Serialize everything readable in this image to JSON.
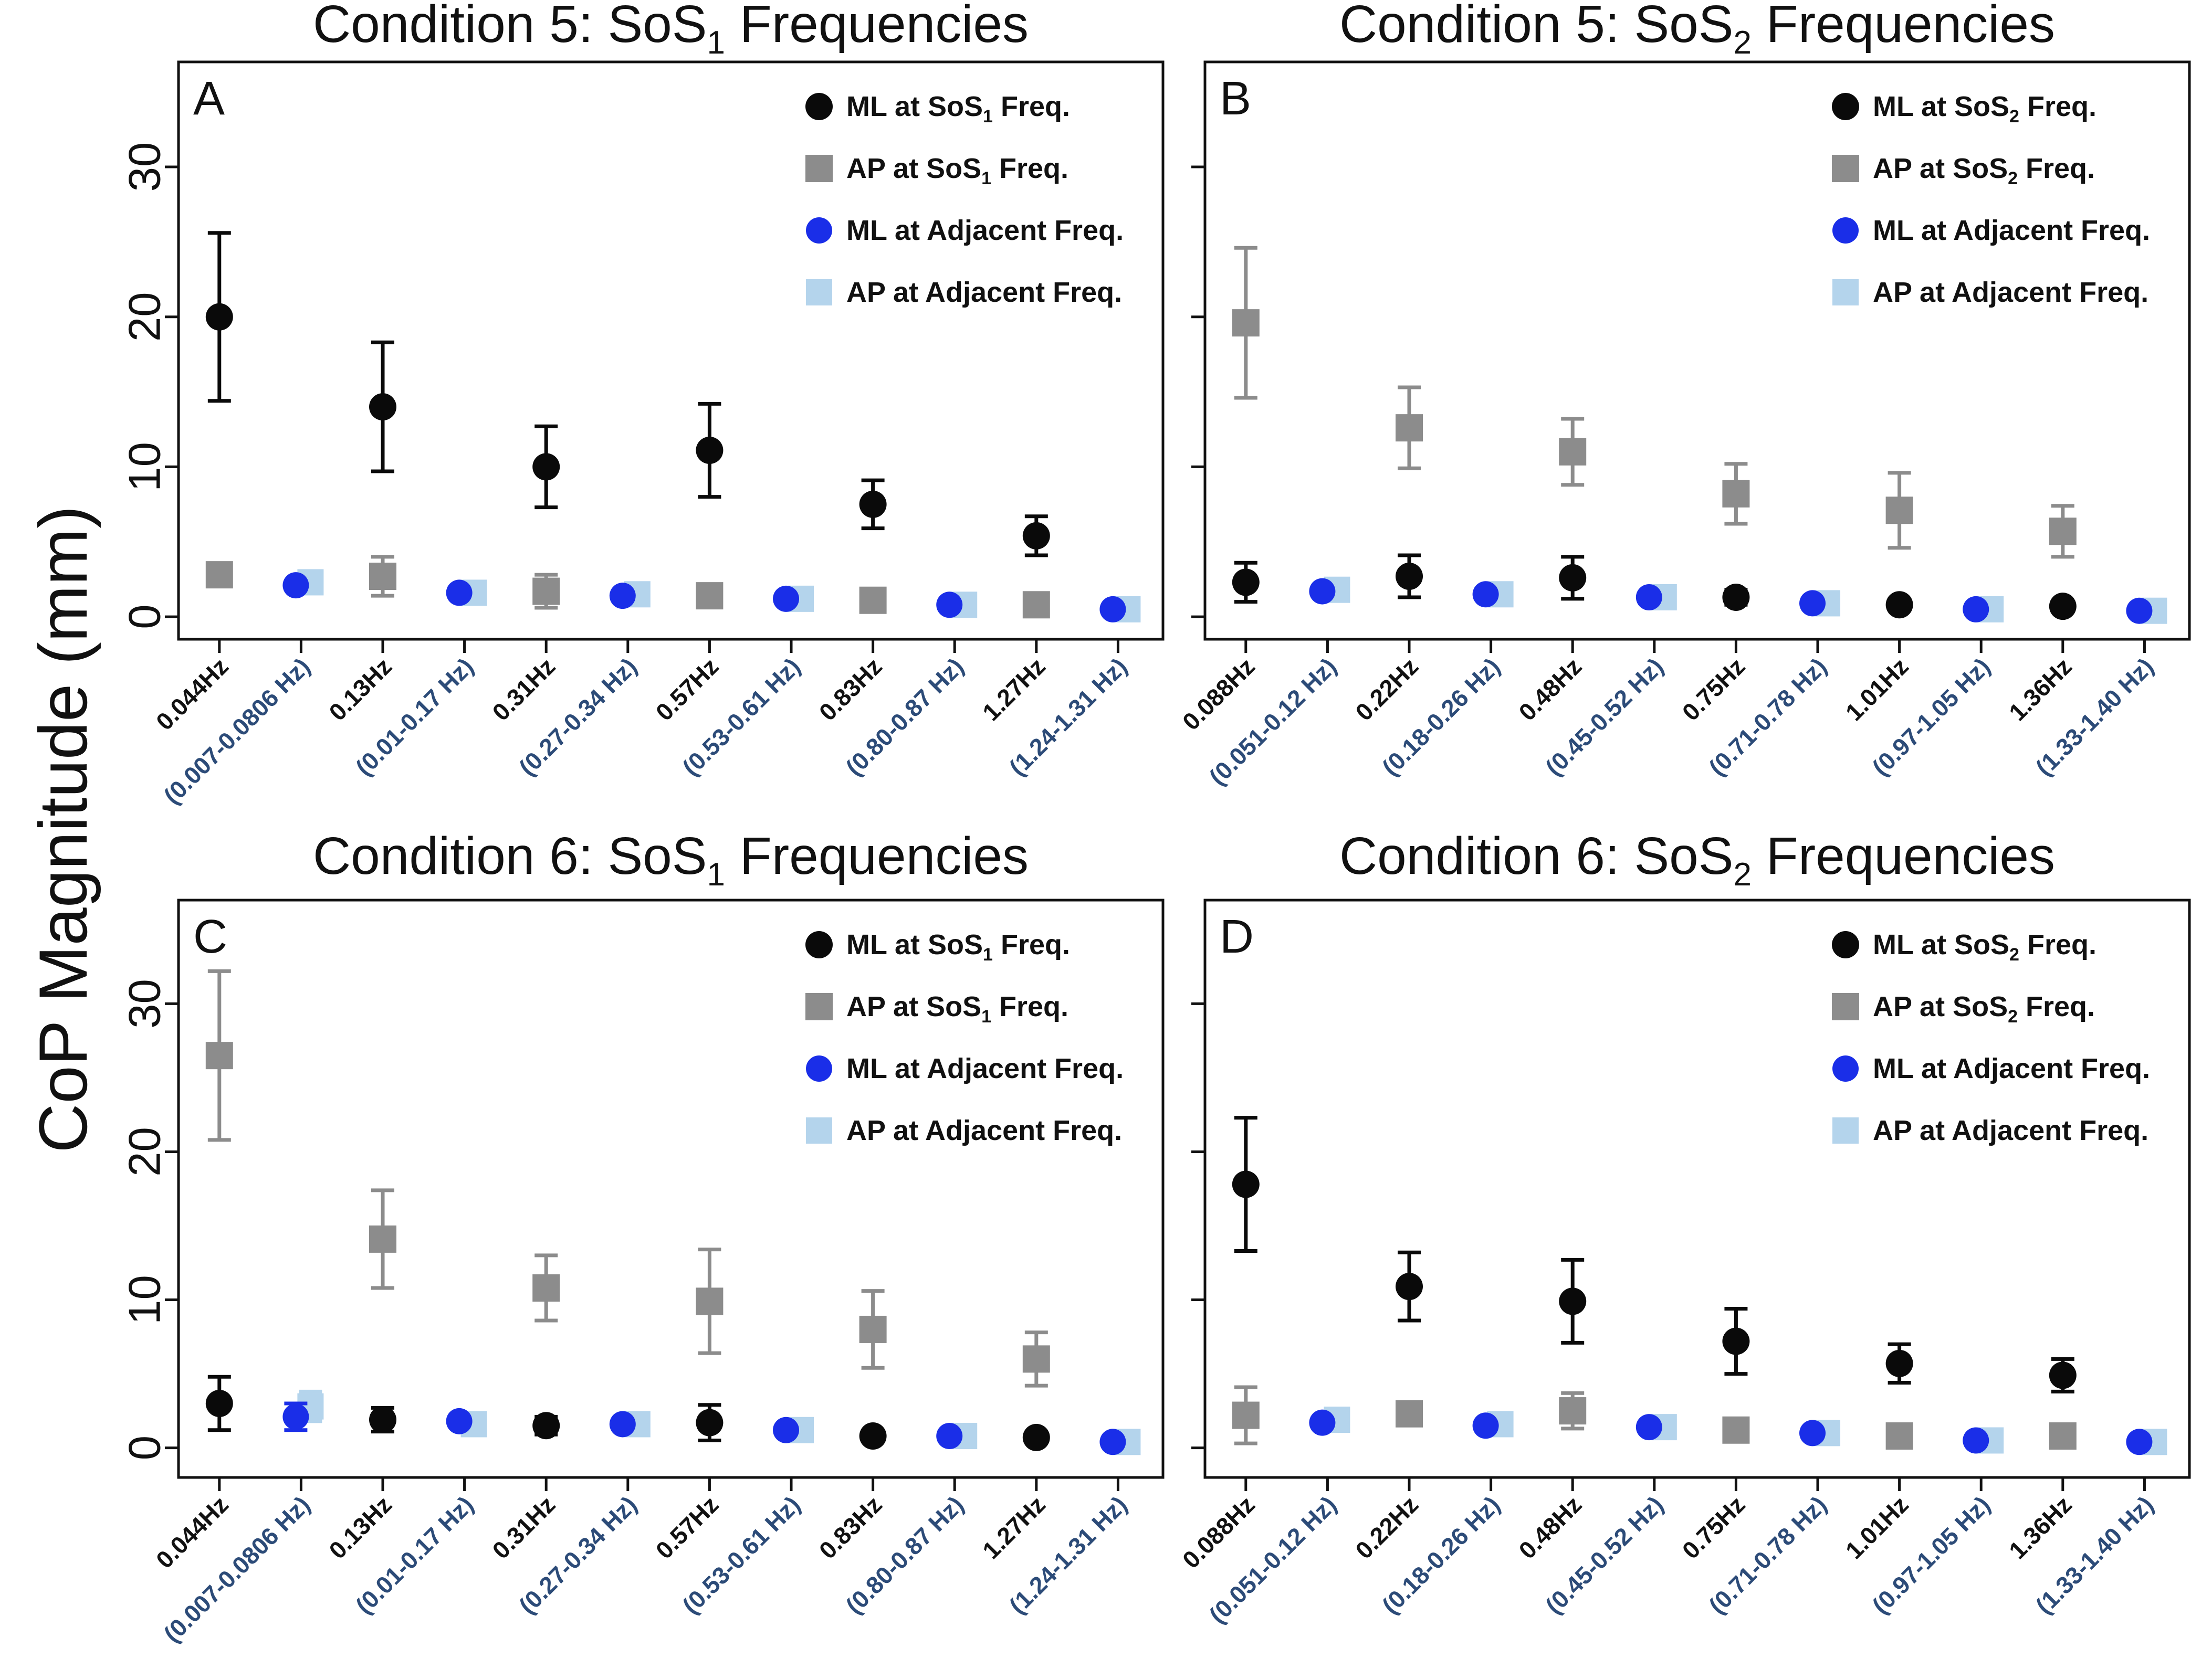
{
  "figure": {
    "y_axis_title": "CoP Magnitude (mm)"
  },
  "colors": {
    "ml_sos": "#0a0a0a",
    "ap_sos": "#8c8c8c",
    "ml_adjacent": "#1a2ee8",
    "ap_adjacent": "#b4d4ec",
    "adjacent_tick_label": "#2c4b78",
    "sos_tick_label": "#111111"
  },
  "chart_data": [
    {
      "panel": "A",
      "type": "scatter",
      "title_main": "Condition 5: SoS",
      "title_sub": "1",
      "title_tail": " Frequencies",
      "ylim": [
        -1.5,
        37
      ],
      "yticks": [
        0,
        10,
        20,
        30
      ],
      "ytick_labels": [
        "0",
        "10",
        "20",
        "30"
      ],
      "categories": [
        "0.044Hz",
        "(0.007-0.0806 Hz)",
        "0.13Hz",
        "(0.01-0.17 Hz)",
        "0.31Hz",
        "(0.27-0.34 Hz)",
        "0.57Hz",
        "(0.53-0.61 Hz)",
        "0.83Hz",
        "(0.80-0.87 Hz)",
        "1.27Hz",
        "(1.24-1.31 Hz)"
      ],
      "legend": [
        {
          "key": "ml_sos",
          "prefix": "ML at SoS",
          "sub": "1",
          "suffix": " Freq."
        },
        {
          "key": "ap_sos",
          "prefix": "AP at SoS",
          "sub": "1",
          "suffix": " Freq."
        },
        {
          "key": "ml_adj",
          "prefix": "ML at Adjacent Freq.",
          "sub": "",
          "suffix": ""
        },
        {
          "key": "ap_adj",
          "prefix": "AP at Adjacent Freq.",
          "sub": "",
          "suffix": ""
        }
      ],
      "series": [
        {
          "name": "ML at SoS1 Freq.",
          "key": "ml_sos",
          "positions": [
            0,
            2,
            4,
            6,
            8,
            10
          ],
          "values": [
            20.0,
            14.0,
            10.0,
            11.1,
            7.5,
            5.4
          ],
          "errors": [
            5.6,
            4.3,
            2.7,
            3.1,
            1.6,
            1.3
          ]
        },
        {
          "name": "AP at SoS1 Freq.",
          "key": "ap_sos",
          "positions": [
            0,
            2,
            4,
            6,
            8,
            10
          ],
          "values": [
            2.8,
            2.7,
            1.7,
            1.4,
            1.1,
            0.8
          ],
          "errors": [
            0.5,
            1.3,
            1.1,
            0.6,
            0.4,
            0.2
          ]
        },
        {
          "name": "ML at Adjacent Freq.",
          "key": "ml_adj",
          "positions": [
            1,
            3,
            5,
            7,
            9,
            11
          ],
          "values": [
            2.1,
            1.6,
            1.4,
            1.2,
            0.8,
            0.5
          ],
          "errors": [
            0.2,
            0.2,
            0.2,
            0.2,
            0.1,
            0.1
          ]
        },
        {
          "name": "AP at Adjacent Freq.",
          "key": "ap_adj",
          "positions": [
            1,
            3,
            5,
            7,
            9,
            11
          ],
          "values": [
            2.3,
            1.6,
            1.5,
            1.2,
            0.8,
            0.5
          ],
          "errors": [
            0,
            0,
            0,
            0,
            0,
            0
          ]
        }
      ]
    },
    {
      "panel": "B",
      "type": "scatter",
      "title_main": "Condition 5: SoS",
      "title_sub": "2",
      "title_tail": " Frequencies",
      "ylim": [
        -1.5,
        37
      ],
      "yticks": [
        0,
        10,
        20,
        30
      ],
      "ytick_labels": [],
      "categories": [
        "0.088Hz",
        "(0.051-0.12 Hz)",
        "0.22Hz",
        "(0.18-0.26 Hz)",
        "0.48Hz",
        "(0.45-0.52 Hz)",
        "0.75Hz",
        "(0.71-0.78 Hz)",
        "1.01Hz",
        "(0.97-1.05 Hz)",
        "1.36Hz",
        "(1.33-1.40 Hz)"
      ],
      "legend": [
        {
          "key": "ml_sos",
          "prefix": "ML at SoS",
          "sub": "2",
          "suffix": " Freq."
        },
        {
          "key": "ap_sos",
          "prefix": "AP at SoS",
          "sub": "2",
          "suffix": " Freq."
        },
        {
          "key": "ml_adj",
          "prefix": "ML at Adjacent Freq.",
          "sub": "",
          "suffix": ""
        },
        {
          "key": "ap_adj",
          "prefix": "AP at Adjacent Freq.",
          "sub": "",
          "suffix": ""
        }
      ],
      "series": [
        {
          "name": "ML at SoS2 Freq.",
          "key": "ml_sos",
          "positions": [
            0,
            2,
            4,
            6,
            8,
            10
          ],
          "values": [
            2.3,
            2.7,
            2.6,
            1.3,
            0.8,
            0.7
          ],
          "errors": [
            1.3,
            1.4,
            1.4,
            0.5,
            0.3,
            0.2
          ]
        },
        {
          "name": "AP at SoS2 Freq.",
          "key": "ap_sos",
          "positions": [
            0,
            2,
            4,
            6,
            8,
            10
          ],
          "values": [
            19.6,
            12.6,
            11.0,
            8.2,
            7.1,
            5.7
          ],
          "errors": [
            5.0,
            2.7,
            2.2,
            2.0,
            2.5,
            1.7
          ]
        },
        {
          "name": "ML at Adjacent Freq.",
          "key": "ml_adj",
          "positions": [
            1,
            3,
            5,
            7,
            9,
            11
          ],
          "values": [
            1.7,
            1.5,
            1.3,
            0.9,
            0.5,
            0.4
          ],
          "errors": [
            0.2,
            0.2,
            0.1,
            0.1,
            0.1,
            0.1
          ]
        },
        {
          "name": "AP at Adjacent Freq.",
          "key": "ap_adj",
          "positions": [
            1,
            3,
            5,
            7,
            9,
            11
          ],
          "values": [
            1.8,
            1.5,
            1.3,
            0.9,
            0.5,
            0.4
          ],
          "errors": [
            0,
            0,
            0,
            0,
            0,
            0
          ]
        }
      ]
    },
    {
      "panel": "C",
      "type": "scatter",
      "title_main": "Condition 6: SoS",
      "title_sub": "1",
      "title_tail": " Frequencies",
      "ylim": [
        -2,
        37
      ],
      "yticks": [
        0,
        10,
        20,
        30
      ],
      "ytick_labels": [
        "0",
        "10",
        "20",
        "30"
      ],
      "categories": [
        "0.044Hz",
        "(0.007-0.0806 Hz)",
        "0.13Hz",
        "(0.01-0.17 Hz)",
        "0.31Hz",
        "(0.27-0.34 Hz)",
        "0.57Hz",
        "(0.53-0.61 Hz)",
        "0.83Hz",
        "(0.80-0.87 Hz)",
        "1.27Hz",
        "(1.24-1.31 Hz)"
      ],
      "legend": [
        {
          "key": "ml_sos",
          "prefix": "ML at SoS",
          "sub": "1",
          "suffix": " Freq."
        },
        {
          "key": "ap_sos",
          "prefix": "AP at SoS",
          "sub": "1",
          "suffix": " Freq."
        },
        {
          "key": "ml_adj",
          "prefix": "ML at Adjacent Freq.",
          "sub": "",
          "suffix": ""
        },
        {
          "key": "ap_adj",
          "prefix": "AP at Adjacent Freq.",
          "sub": "",
          "suffix": ""
        }
      ],
      "series": [
        {
          "name": "ML at SoS1 Freq.",
          "key": "ml_sos",
          "positions": [
            0,
            2,
            4,
            6,
            8,
            10
          ],
          "values": [
            3.0,
            1.9,
            1.5,
            1.7,
            0.8,
            0.7
          ],
          "errors": [
            1.8,
            0.8,
            0.6,
            1.2,
            0.2,
            0.2
          ]
        },
        {
          "name": "AP at SoS1 Freq.",
          "key": "ap_sos",
          "positions": [
            0,
            2,
            4,
            6,
            8,
            10
          ],
          "values": [
            26.5,
            14.1,
            10.8,
            9.9,
            8.0,
            6.0
          ],
          "errors": [
            5.7,
            3.3,
            2.2,
            3.5,
            2.6,
            1.8
          ]
        },
        {
          "name": "ML at Adjacent Freq.",
          "key": "ml_adj",
          "positions": [
            1,
            3,
            5,
            7,
            9,
            11
          ],
          "values": [
            2.1,
            1.8,
            1.6,
            1.2,
            0.8,
            0.4
          ],
          "errors": [
            0.9,
            0.3,
            0.2,
            0.2,
            0.1,
            0.1
          ]
        },
        {
          "name": "AP at Adjacent Freq.",
          "key": "ap_adj",
          "positions": [
            1,
            3,
            5,
            7,
            9,
            11
          ],
          "values": [
            2.8,
            1.6,
            1.6,
            1.2,
            0.8,
            0.4
          ],
          "errors": [
            1.0,
            0,
            0,
            0,
            0,
            0
          ]
        }
      ]
    },
    {
      "panel": "D",
      "type": "scatter",
      "title_main": "Condition 6: SoS",
      "title_sub": "2",
      "title_tail": " Frequencies",
      "ylim": [
        -2,
        37
      ],
      "yticks": [
        0,
        10,
        20,
        30
      ],
      "ytick_labels": [],
      "categories": [
        "0.088Hz",
        "(0.051-0.12 Hz)",
        "0.22Hz",
        "(0.18-0.26 Hz)",
        "0.48Hz",
        "(0.45-0.52 Hz)",
        "0.75Hz",
        "(0.71-0.78 Hz)",
        "1.01Hz",
        "(0.97-1.05 Hz)",
        "1.36Hz",
        "(1.33-1.40 Hz)"
      ],
      "legend": [
        {
          "key": "ml_sos",
          "prefix": "ML at SoS",
          "sub": "2",
          "suffix": " Freq."
        },
        {
          "key": "ap_sos",
          "prefix": "AP at SoS",
          "sub": "2",
          "suffix": " Freq."
        },
        {
          "key": "ml_adj",
          "prefix": "ML at Adjacent Freq.",
          "sub": "",
          "suffix": ""
        },
        {
          "key": "ap_adj",
          "prefix": "AP at Adjacent Freq.",
          "sub": "",
          "suffix": ""
        }
      ],
      "series": [
        {
          "name": "ML at SoS2 Freq.",
          "key": "ml_sos",
          "positions": [
            0,
            2,
            4,
            6,
            8,
            10
          ],
          "values": [
            17.8,
            10.9,
            9.9,
            7.2,
            5.7,
            4.9
          ],
          "errors": [
            4.5,
            2.3,
            2.8,
            2.2,
            1.3,
            1.1
          ]
        },
        {
          "name": "AP at SoS2 Freq.",
          "key": "ap_sos",
          "positions": [
            0,
            2,
            4,
            6,
            8,
            10
          ],
          "values": [
            2.2,
            2.3,
            2.5,
            1.2,
            0.8,
            0.8
          ],
          "errors": [
            1.9,
            0.2,
            1.2,
            0.2,
            0.2,
            0.2
          ]
        },
        {
          "name": "ML at Adjacent Freq.",
          "key": "ml_adj",
          "positions": [
            1,
            3,
            5,
            7,
            9,
            11
          ],
          "values": [
            1.7,
            1.5,
            1.4,
            1.0,
            0.5,
            0.4
          ],
          "errors": [
            0.3,
            0.2,
            0.2,
            0.1,
            0.1,
            0.1
          ]
        },
        {
          "name": "AP at Adjacent Freq.",
          "key": "ap_adj",
          "positions": [
            1,
            3,
            5,
            7,
            9,
            11
          ],
          "values": [
            1.9,
            1.6,
            1.4,
            1.0,
            0.5,
            0.4
          ],
          "errors": [
            0,
            0,
            0,
            0,
            0,
            0
          ]
        }
      ]
    }
  ]
}
